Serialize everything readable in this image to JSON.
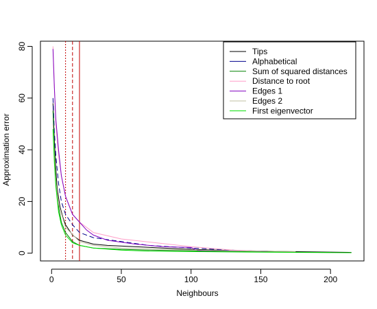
{
  "chart_data": {
    "type": "line",
    "title": "",
    "xlabel": "Neighbours",
    "ylabel": "Approximation error",
    "xlim": [
      -8,
      224
    ],
    "ylim": [
      -3,
      82
    ],
    "x_ticks": [
      0,
      50,
      100,
      150,
      200
    ],
    "y_ticks": [
      0,
      20,
      40,
      60,
      80
    ],
    "grid": false,
    "legend_position": "top-right",
    "series": [
      {
        "name": "Tips",
        "color": "#000000",
        "dash": "",
        "points": [
          [
            1,
            58
          ],
          [
            2,
            44
          ],
          [
            3,
            33
          ],
          [
            4,
            25
          ],
          [
            6,
            18
          ],
          [
            8,
            14
          ],
          [
            10,
            11
          ],
          [
            15,
            7
          ],
          [
            20,
            5
          ],
          [
            30,
            3.5
          ],
          [
            40,
            3
          ],
          [
            60,
            2.5
          ],
          [
            80,
            2
          ],
          [
            100,
            1.5
          ],
          [
            130,
            1
          ],
          [
            170,
            0.6
          ],
          [
            215,
            0.3
          ]
        ]
      },
      {
        "name": "Alphabetical",
        "color": "#00008b",
        "dash": "7,4",
        "points": [
          [
            1,
            60
          ],
          [
            2,
            47
          ],
          [
            3,
            38
          ],
          [
            5,
            27
          ],
          [
            7,
            20
          ],
          [
            10,
            15
          ],
          [
            15,
            11
          ],
          [
            20,
            8
          ],
          [
            30,
            6
          ],
          [
            50,
            4.5
          ],
          [
            70,
            3
          ],
          [
            100,
            2
          ],
          [
            135,
            1
          ],
          [
            150,
            0.8
          ]
        ]
      },
      {
        "name": "Sum of squared distances",
        "color": "#008000",
        "dash": "",
        "points": [
          [
            1,
            55
          ],
          [
            2,
            40
          ],
          [
            3,
            28
          ],
          [
            5,
            18
          ],
          [
            7,
            12
          ],
          [
            10,
            8
          ],
          [
            15,
            4.5
          ],
          [
            20,
            3
          ],
          [
            30,
            2
          ],
          [
            50,
            1.5
          ],
          [
            70,
            1.2
          ],
          [
            90,
            1
          ],
          [
            120,
            0.7
          ],
          [
            170,
            0.4
          ],
          [
            200,
            0.3
          ]
        ]
      },
      {
        "name": "Distance to root",
        "color": "#ff9ec8",
        "dash": "",
        "points": [
          [
            1,
            80
          ],
          [
            2,
            65
          ],
          [
            3,
            50
          ],
          [
            5,
            38
          ],
          [
            7,
            30
          ],
          [
            10,
            22
          ],
          [
            15,
            15
          ],
          [
            20,
            12
          ],
          [
            30,
            8
          ],
          [
            50,
            5.5
          ],
          [
            75,
            4
          ],
          [
            100,
            2.5
          ],
          [
            130,
            1.2
          ],
          [
            150,
            0.8
          ]
        ]
      },
      {
        "name": "Edges 1",
        "color": "#8000c0",
        "dash": "",
        "points": [
          [
            1,
            79
          ],
          [
            2,
            64
          ],
          [
            3,
            52
          ],
          [
            5,
            40
          ],
          [
            7,
            30
          ],
          [
            10,
            22
          ],
          [
            15,
            15
          ],
          [
            20,
            12
          ],
          [
            25,
            9
          ],
          [
            30,
            7
          ],
          [
            40,
            5
          ],
          [
            60,
            3.5
          ],
          [
            80,
            2.5
          ],
          [
            100,
            2.2
          ],
          [
            105,
            1
          ],
          [
            155,
            0.8
          ]
        ]
      },
      {
        "name": "Edges 2",
        "color": "#c0c0a0",
        "dash": "",
        "points": [
          [
            1,
            50
          ],
          [
            2,
            38
          ],
          [
            3,
            28
          ],
          [
            5,
            19
          ],
          [
            10,
            10
          ],
          [
            20,
            4.5
          ],
          [
            30,
            3
          ],
          [
            50,
            2
          ],
          [
            80,
            1.5
          ],
          [
            120,
            1
          ],
          [
            175,
            0.6
          ]
        ]
      },
      {
        "name": "First eigenvector",
        "color": "#00dd00",
        "dash": "",
        "points": [
          [
            1,
            48
          ],
          [
            2,
            35
          ],
          [
            3,
            26
          ],
          [
            5,
            16
          ],
          [
            7,
            11
          ],
          [
            10,
            7
          ],
          [
            15,
            4
          ],
          [
            20,
            3
          ],
          [
            30,
            2
          ],
          [
            50,
            1.2
          ],
          [
            70,
            0.8
          ],
          [
            100,
            0.6
          ],
          [
            150,
            0.4
          ],
          [
            215,
            0.2
          ]
        ]
      }
    ],
    "vlines": [
      {
        "x": 10,
        "color": "#c00000",
        "dash": "2,2"
      },
      {
        "x": 15,
        "color": "#c00000",
        "dash": "5,3"
      },
      {
        "x": 20,
        "color": "#c00000",
        "dash": ""
      }
    ]
  }
}
